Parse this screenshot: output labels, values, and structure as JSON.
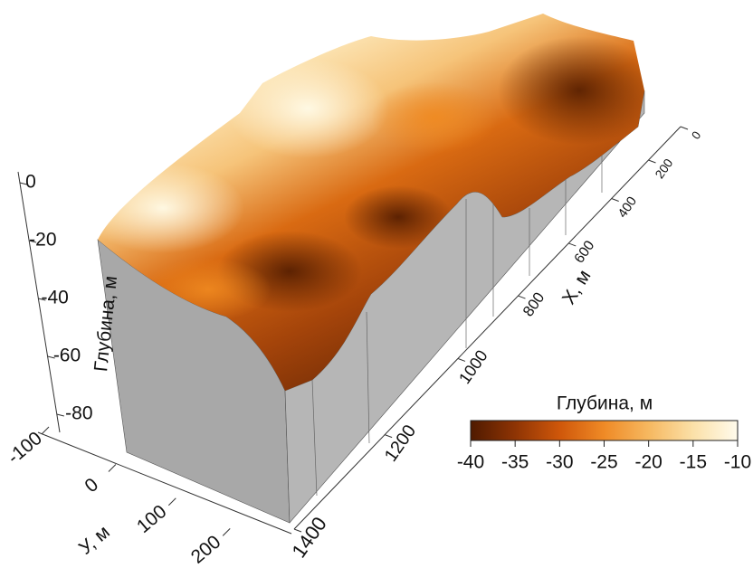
{
  "chart_data": {
    "type": "surface",
    "zlabel": "Глубина, м",
    "zlim": [
      -90,
      0
    ],
    "zticks": [
      0,
      -20,
      -40,
      -60,
      -80
    ],
    "xlabel": "X, м",
    "xlim": [
      0,
      1400
    ],
    "xticks": [
      0,
      200,
      400,
      600,
      800,
      1000,
      1200,
      1400
    ],
    "ylabel": "У, м",
    "ylim": [
      -100,
      250
    ],
    "yticks": [
      -100,
      0,
      100,
      200
    ],
    "colorbar": {
      "title": "Глубина, м",
      "lim": [
        -40,
        -10
      ],
      "ticks": [
        -40,
        -35,
        -30,
        -25,
        -20,
        -15,
        -10
      ],
      "colors": [
        "#4f1a00",
        "#8e3404",
        "#cf570a",
        "#ef8a26",
        "#f6b860",
        "#fbe0a8",
        "#fffbec"
      ]
    }
  }
}
